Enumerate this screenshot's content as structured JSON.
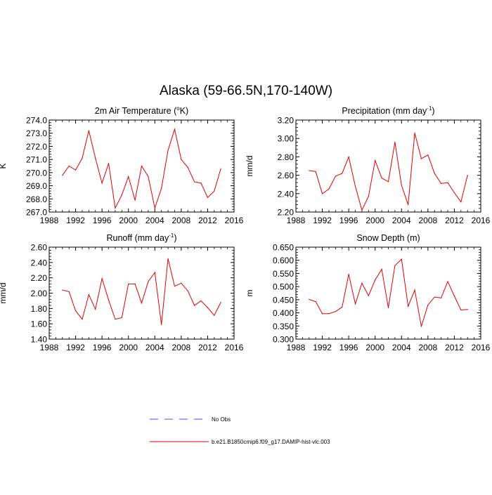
{
  "figure": {
    "title": "Alaska (59-66.5N,170-140W)"
  },
  "legend": {
    "items": [
      {
        "label": "No Obs",
        "color": "#4a4aff",
        "style": "dashed"
      },
      {
        "label": "b.e21.B1850cmip6.f09_g17.DAMIP-hist-vlc.003",
        "color": "#e00000",
        "style": "solid"
      }
    ]
  },
  "chart_data": [
    {
      "type": "line",
      "title": "2m Air Temperature (",
      "title_sup": "o",
      "title_tail": "K)",
      "xlabel": "",
      "ylabel": "K",
      "xlim": [
        1988,
        2016
      ],
      "ylim": [
        267.0,
        274.0
      ],
      "xticks": [
        "1988",
        "1992",
        "1996",
        "2000",
        "2004",
        "2008",
        "2012",
        "2016"
      ],
      "yticks": [
        "267.0",
        "268.0",
        "269.0",
        "270.0",
        "271.0",
        "272.0",
        "273.0",
        "274.0"
      ],
      "x": [
        1990,
        1991,
        1992,
        1993,
        1994,
        1995,
        1996,
        1997,
        1998,
        1999,
        2000,
        2001,
        2002,
        2003,
        2004,
        2005,
        2006,
        2007,
        2008,
        2009,
        2010,
        2011,
        2012,
        2013,
        2014
      ],
      "series": [
        {
          "name": "b.e21.B1850cmip6.f09_g17.DAMIP-hist-vlc.003",
          "color": "#e00000",
          "values": [
            269.8,
            270.5,
            270.2,
            271.1,
            273.2,
            271.1,
            269.2,
            270.7,
            267.3,
            268.3,
            269.7,
            267.9,
            270.5,
            269.7,
            267.3,
            268.8,
            271.7,
            273.3,
            271.0,
            270.4,
            269.3,
            269.2,
            268.1,
            268.6,
            270.3
          ]
        }
      ]
    },
    {
      "type": "line",
      "title": "Precipitation (mm day",
      "title_sup": "-1",
      "title_tail": ")",
      "xlabel": "",
      "ylabel": "mm/d",
      "xlim": [
        1988,
        2016
      ],
      "ylim": [
        2.2,
        3.2
      ],
      "xticks": [
        "1988",
        "1992",
        "1996",
        "2000",
        "2004",
        "2008",
        "2012",
        "2016"
      ],
      "yticks": [
        "2.20",
        "2.40",
        "2.60",
        "2.80",
        "3.00",
        "3.20"
      ],
      "x": [
        1990,
        1991,
        1992,
        1993,
        1994,
        1995,
        1996,
        1997,
        1998,
        1999,
        2000,
        2001,
        2002,
        2003,
        2004,
        2005,
        2006,
        2007,
        2008,
        2009,
        2010,
        2011,
        2012,
        2013,
        2014
      ],
      "series": [
        {
          "name": "b.e21.B1850cmip6.f09_g17.DAMIP-hist-vlc.003",
          "color": "#e00000",
          "values": [
            2.65,
            2.64,
            2.4,
            2.45,
            2.59,
            2.62,
            2.8,
            2.48,
            2.22,
            2.37,
            2.76,
            2.57,
            2.53,
            2.96,
            2.49,
            2.28,
            3.06,
            2.78,
            2.82,
            2.62,
            2.51,
            2.52,
            2.41,
            2.31,
            2.6
          ]
        }
      ]
    },
    {
      "type": "line",
      "title": "Runoff (mm day",
      "title_sup": "-1",
      "title_tail": ")",
      "xlabel": "",
      "ylabel": "mm/d",
      "xlim": [
        1988,
        2016
      ],
      "ylim": [
        1.4,
        2.6
      ],
      "xticks": [
        "1988",
        "1992",
        "1996",
        "2000",
        "2004",
        "2008",
        "2012",
        "2016"
      ],
      "yticks": [
        "1.40",
        "1.60",
        "1.80",
        "2.00",
        "2.20",
        "2.40",
        "2.60"
      ],
      "x": [
        1990,
        1991,
        1992,
        1993,
        1994,
        1995,
        1996,
        1997,
        1998,
        1999,
        2000,
        2001,
        2002,
        2003,
        2004,
        2005,
        2006,
        2007,
        2008,
        2009,
        2010,
        2011,
        2012,
        2013,
        2014
      ],
      "series": [
        {
          "name": "b.e21.B1850cmip6.f09_g17.DAMIP-hist-vlc.003",
          "color": "#e00000",
          "values": [
            2.04,
            2.02,
            1.77,
            1.66,
            1.98,
            1.79,
            2.19,
            1.91,
            1.66,
            1.68,
            2.12,
            2.12,
            1.87,
            2.15,
            2.27,
            1.59,
            2.45,
            2.09,
            2.13,
            2.03,
            1.84,
            1.9,
            1.81,
            1.71,
            1.88
          ]
        }
      ]
    },
    {
      "type": "line",
      "title": "Snow Depth (m)",
      "title_sup": "",
      "title_tail": "",
      "xlabel": "",
      "ylabel": "m",
      "xlim": [
        1988,
        2016
      ],
      "ylim": [
        0.3,
        0.65
      ],
      "xticks": [
        "1988",
        "1992",
        "1996",
        "2000",
        "2004",
        "2008",
        "2012",
        "2016"
      ],
      "yticks": [
        "0.300",
        "0.350",
        "0.400",
        "0.450",
        "0.500",
        "0.550",
        "0.600",
        "0.650"
      ],
      "x": [
        1990,
        1991,
        1992,
        1993,
        1994,
        1995,
        1996,
        1997,
        1998,
        1999,
        2000,
        2001,
        2002,
        2003,
        2004,
        2005,
        2006,
        2007,
        2008,
        2009,
        2010,
        2011,
        2012,
        2013,
        2014
      ],
      "series": [
        {
          "name": "b.e21.B1850cmip6.f09_g17.DAMIP-hist-vlc.003",
          "color": "#e00000",
          "values": [
            0.451,
            0.443,
            0.397,
            0.397,
            0.405,
            0.422,
            0.547,
            0.434,
            0.513,
            0.465,
            0.525,
            0.566,
            0.419,
            0.58,
            0.604,
            0.425,
            0.487,
            0.348,
            0.43,
            0.46,
            0.457,
            0.519,
            0.464,
            0.411,
            0.413
          ]
        }
      ]
    }
  ]
}
